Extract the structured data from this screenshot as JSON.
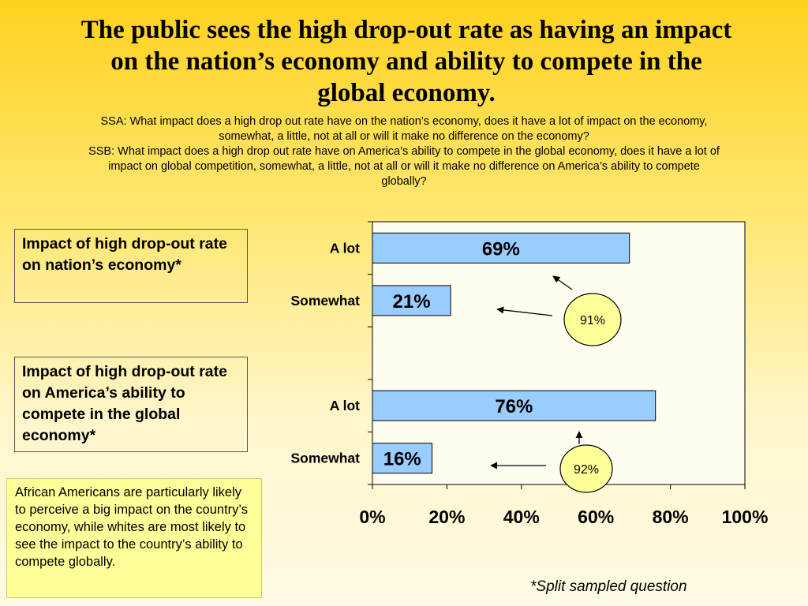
{
  "slide": {
    "title_lines": [
      "The public sees the high drop-out rate as having an impact",
      "on the nation’s economy and ability to compete in the",
      "global economy."
    ],
    "subtitle_lines": [
      "SSA:  What impact does a high drop out rate have on the nation’s economy, does it have a lot of impact on the economy,",
      "somewhat, a little, not at all or will it make no difference on the economy?",
      "SSB: What impact does a high drop out rate have on America’s ability to compete in the global economy, does it have a lot of",
      "impact on global competition, somewhat, a little, not at all or will it make no difference on America’s ability to compete",
      "globally?"
    ],
    "box1": "Impact of high drop-out rate on nation’s economy*",
    "box2": "Impact of high drop-out rate on America’s ability to compete in the global economy*",
    "note": "African Americans are particularly likely to perceive a big impact on the country’s economy, while whites are most likely to see the impact to the country’s ability to compete globally.",
    "footnote": "*Split sampled question"
  },
  "chart_data": {
    "type": "bar",
    "orientation": "horizontal",
    "categories": [
      "A lot",
      "Somewhat",
      "A lot",
      "Somewhat"
    ],
    "values": [
      69,
      21,
      76,
      16
    ],
    "data_labels": [
      "69%",
      "21%",
      "76%",
      "16%"
    ],
    "xlim": [
      0,
      100
    ],
    "x_ticks": [
      "0%",
      "20%",
      "40%",
      "60%",
      "80%",
      "100%"
    ],
    "bar_color": "#99ccff",
    "grid": false,
    "callouts": [
      {
        "label": "91%",
        "fill": "#ffff99"
      },
      {
        "label": "92%",
        "fill": "#ffff99"
      }
    ]
  }
}
